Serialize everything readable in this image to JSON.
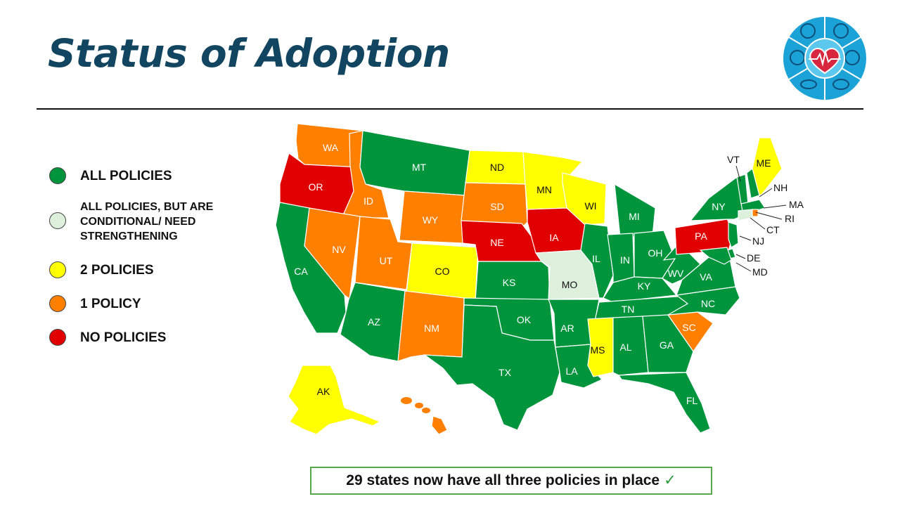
{
  "title": "Status of Adoption",
  "logo": {
    "icon": "heart-sports-icon",
    "colors": {
      "outer": "#1ba3d8",
      "inner": "#5cc8ee",
      "heart": "#d7263d"
    }
  },
  "legend": [
    {
      "key": "all",
      "label": "ALL POLICIES",
      "color": "#00953d"
    },
    {
      "key": "conditional",
      "label": "ALL POLICIES, BUT ARE\nCONDITIONAL/ NEED\nSTRENGTHENING",
      "color": "#ddf0dc"
    },
    {
      "key": "two",
      "label": "2 POLICIES",
      "color": "#ffff00"
    },
    {
      "key": "one",
      "label": "1 POLICY",
      "color": "#ff7f00"
    },
    {
      "key": "none",
      "label": "NO POLICIES",
      "color": "#e00000"
    }
  ],
  "map": {
    "states": [
      {
        "abbr": "WA",
        "status": "one"
      },
      {
        "abbr": "OR",
        "status": "none"
      },
      {
        "abbr": "CA",
        "status": "all"
      },
      {
        "abbr": "ID",
        "status": "one"
      },
      {
        "abbr": "NV",
        "status": "one"
      },
      {
        "abbr": "MT",
        "status": "all"
      },
      {
        "abbr": "WY",
        "status": "one"
      },
      {
        "abbr": "UT",
        "status": "one"
      },
      {
        "abbr": "AZ",
        "status": "all"
      },
      {
        "abbr": "CO",
        "status": "two"
      },
      {
        "abbr": "NM",
        "status": "one"
      },
      {
        "abbr": "ND",
        "status": "two"
      },
      {
        "abbr": "SD",
        "status": "one"
      },
      {
        "abbr": "NE",
        "status": "none"
      },
      {
        "abbr": "KS",
        "status": "all"
      },
      {
        "abbr": "OK",
        "status": "all"
      },
      {
        "abbr": "TX",
        "status": "all"
      },
      {
        "abbr": "MN",
        "status": "two"
      },
      {
        "abbr": "IA",
        "status": "none"
      },
      {
        "abbr": "MO",
        "status": "conditional"
      },
      {
        "abbr": "AR",
        "status": "all"
      },
      {
        "abbr": "LA",
        "status": "all"
      },
      {
        "abbr": "WI",
        "status": "two"
      },
      {
        "abbr": "IL",
        "status": "all"
      },
      {
        "abbr": "MI",
        "status": "all"
      },
      {
        "abbr": "IN",
        "status": "all"
      },
      {
        "abbr": "OH",
        "status": "all"
      },
      {
        "abbr": "KY",
        "status": "all"
      },
      {
        "abbr": "TN",
        "status": "all"
      },
      {
        "abbr": "MS",
        "status": "two"
      },
      {
        "abbr": "AL",
        "status": "all"
      },
      {
        "abbr": "GA",
        "status": "all"
      },
      {
        "abbr": "FL",
        "status": "all"
      },
      {
        "abbr": "SC",
        "status": "one"
      },
      {
        "abbr": "NC",
        "status": "all"
      },
      {
        "abbr": "VA",
        "status": "all"
      },
      {
        "abbr": "WV",
        "status": "all"
      },
      {
        "abbr": "PA",
        "status": "none"
      },
      {
        "abbr": "NY",
        "status": "all"
      },
      {
        "abbr": "ME",
        "status": "two"
      },
      {
        "abbr": "VT",
        "status": "all"
      },
      {
        "abbr": "NH",
        "status": "all"
      },
      {
        "abbr": "MA",
        "status": "all"
      },
      {
        "abbr": "RI",
        "status": "one"
      },
      {
        "abbr": "CT",
        "status": "conditional"
      },
      {
        "abbr": "NJ",
        "status": "all"
      },
      {
        "abbr": "DE",
        "status": "all"
      },
      {
        "abbr": "MD",
        "status": "all"
      },
      {
        "abbr": "AK",
        "status": "two"
      },
      {
        "abbr": "HI",
        "status": "one"
      }
    ]
  },
  "footer": {
    "text": "29 states now have all three policies in place",
    "check": "✓"
  }
}
